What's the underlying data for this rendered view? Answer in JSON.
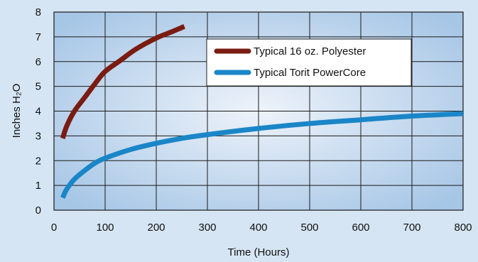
{
  "chart_data": {
    "type": "line",
    "xlabel": "Time (Hours)",
    "ylabel": "Inches H₂O",
    "xlim": [
      0,
      800
    ],
    "ylim": [
      0,
      8
    ],
    "x_ticks": [
      "0",
      "100",
      "200",
      "300",
      "400",
      "500",
      "600",
      "700",
      "800"
    ],
    "y_ticks": [
      "0",
      "1",
      "2",
      "3",
      "4",
      "5",
      "6",
      "7",
      "8"
    ],
    "grid": true,
    "legend_position": "top-right",
    "series": [
      {
        "name": "Typical 16 oz. Polyester",
        "color": "#7a1c12",
        "points": [
          [
            17,
            2.9
          ],
          [
            25,
            3.4
          ],
          [
            40,
            4.0
          ],
          [
            60,
            4.55
          ],
          [
            80,
            5.1
          ],
          [
            100,
            5.6
          ],
          [
            130,
            6.05
          ],
          [
            160,
            6.5
          ],
          [
            200,
            6.95
          ],
          [
            230,
            7.2
          ],
          [
            255,
            7.42
          ]
        ]
      },
      {
        "name": "Typical Torit PowerCore",
        "color": "#1a86c8",
        "points": [
          [
            17,
            0.5
          ],
          [
            25,
            0.85
          ],
          [
            40,
            1.25
          ],
          [
            60,
            1.6
          ],
          [
            80,
            1.9
          ],
          [
            100,
            2.1
          ],
          [
            150,
            2.45
          ],
          [
            200,
            2.7
          ],
          [
            250,
            2.9
          ],
          [
            300,
            3.05
          ],
          [
            400,
            3.3
          ],
          [
            500,
            3.5
          ],
          [
            600,
            3.65
          ],
          [
            700,
            3.8
          ],
          [
            800,
            3.9
          ]
        ]
      }
    ]
  }
}
